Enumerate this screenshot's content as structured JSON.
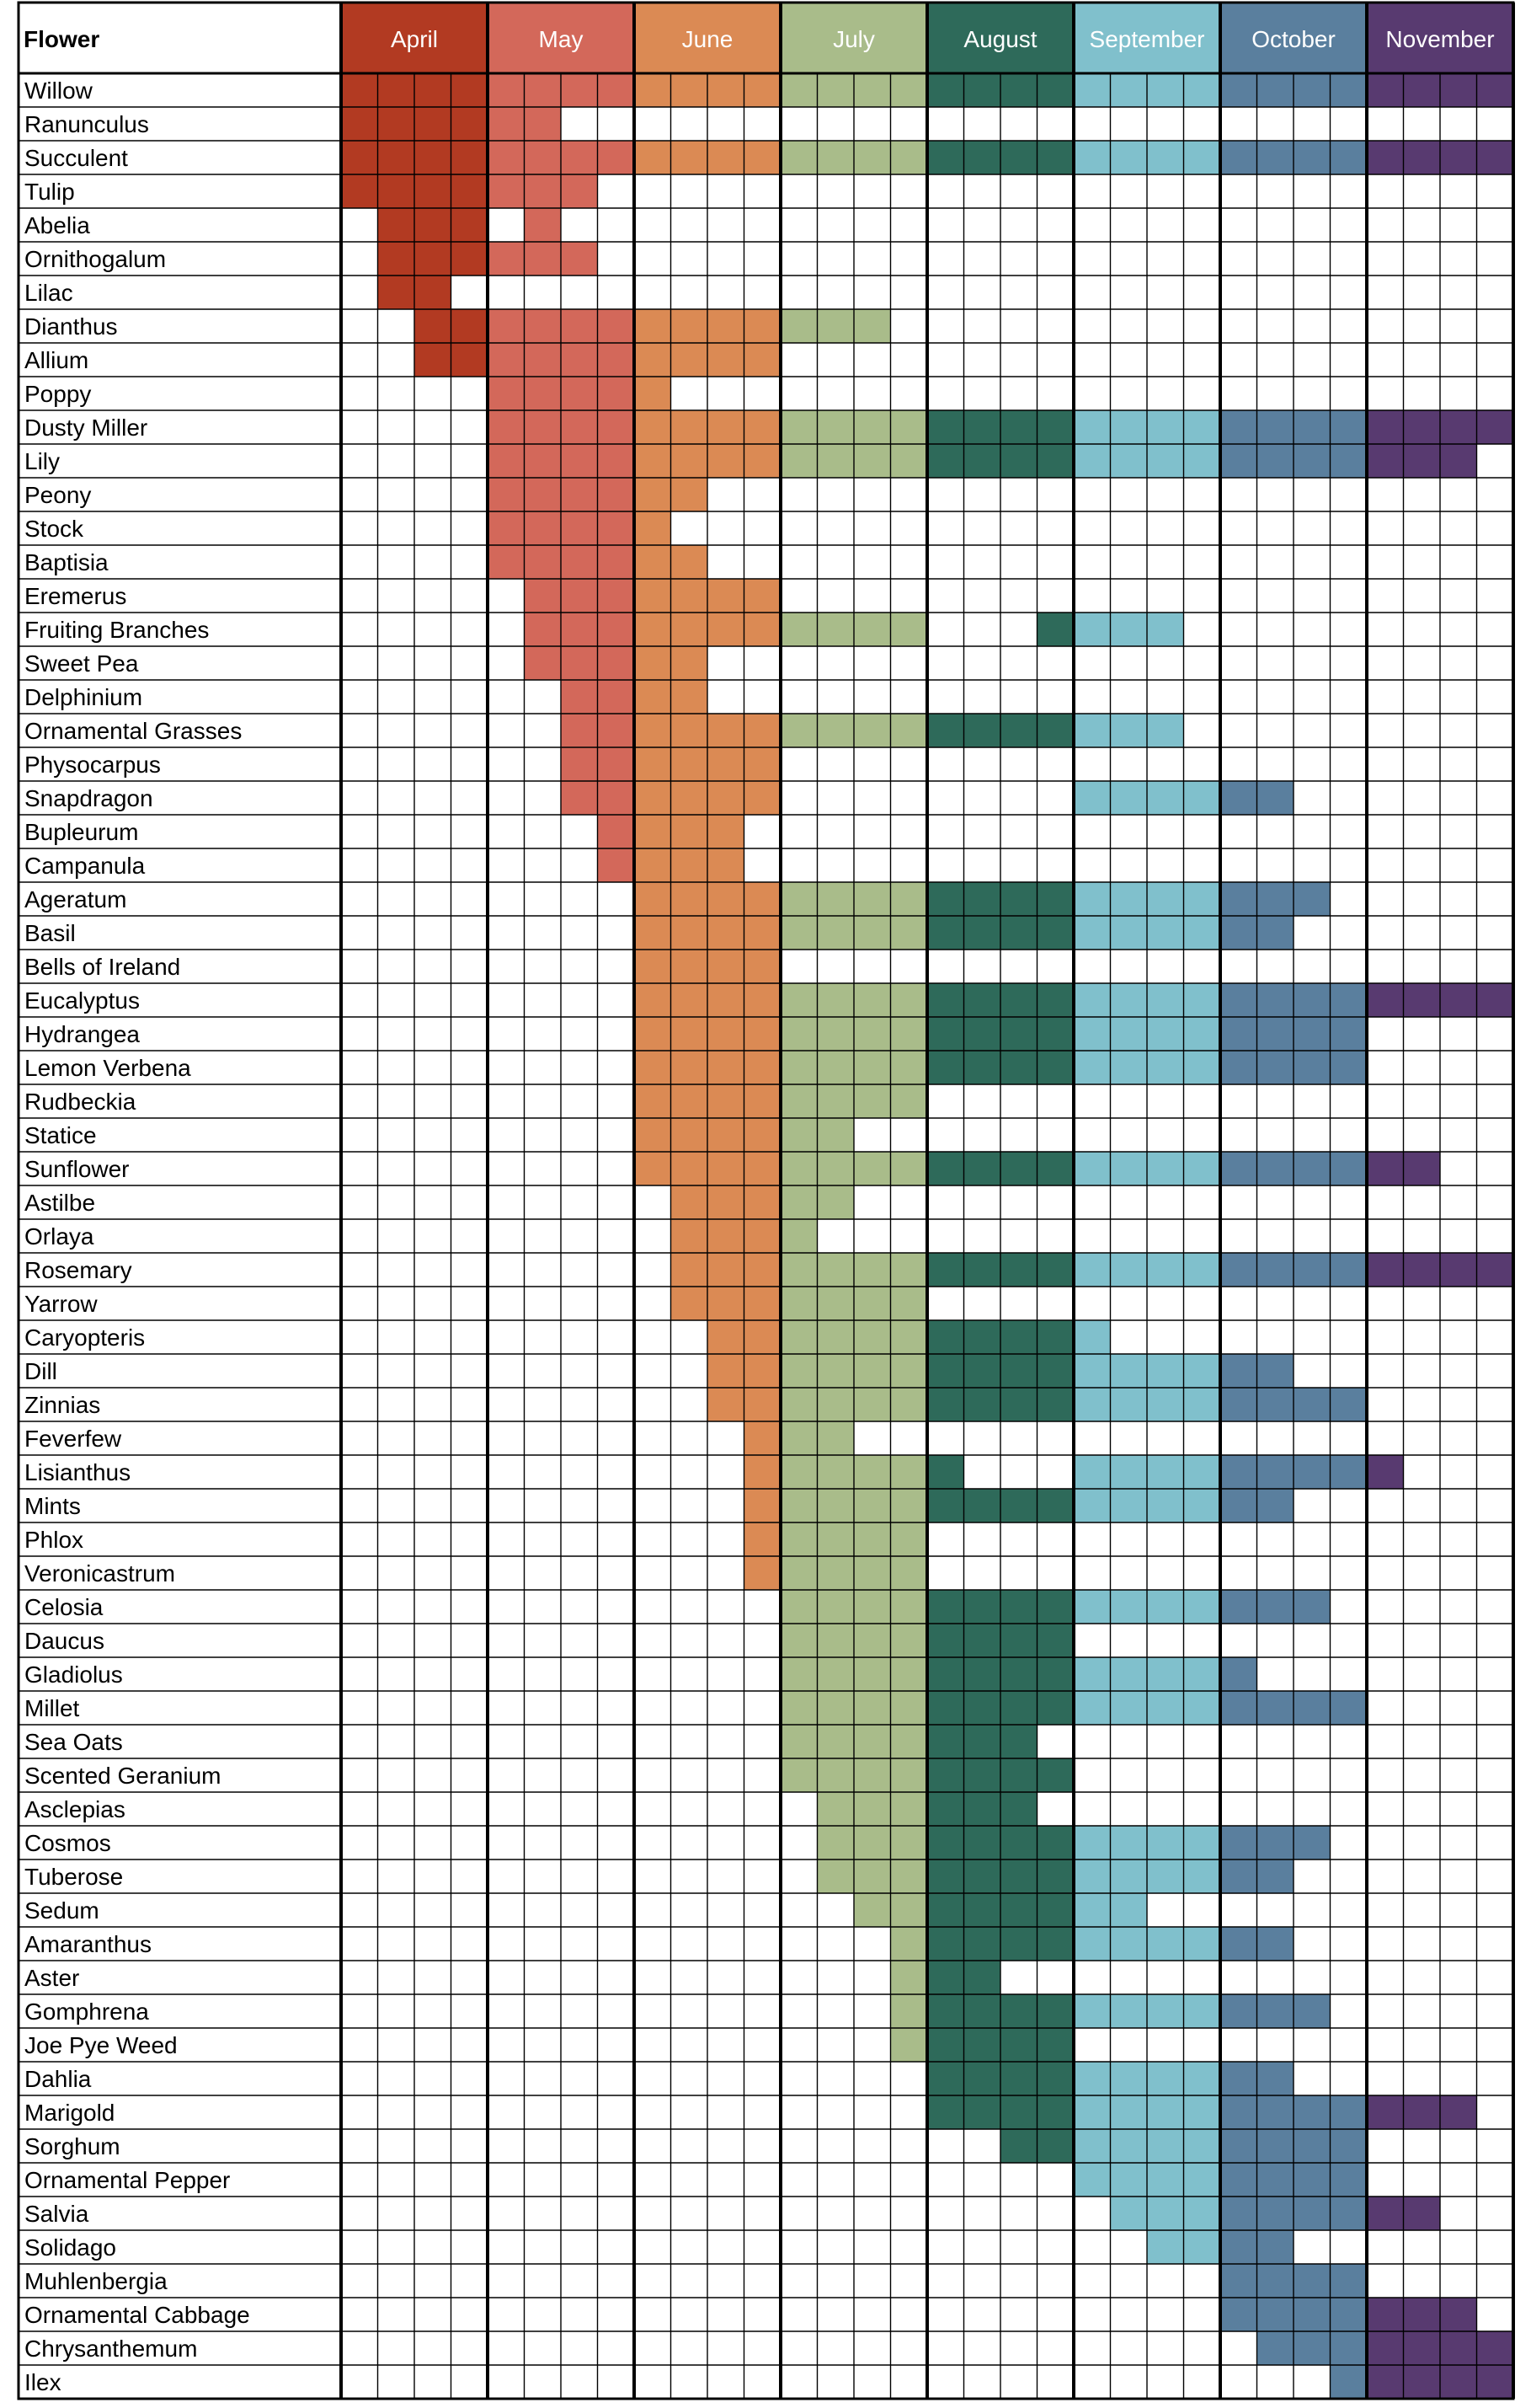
{
  "chart_data": {
    "type": "table",
    "title": "",
    "row_header": "Flower",
    "weeks_per_month": 4,
    "months": [
      {
        "name": "April",
        "color": "#B23A22"
      },
      {
        "name": "May",
        "color": "#D3685A"
      },
      {
        "name": "June",
        "color": "#DB8A54"
      },
      {
        "name": "July",
        "color": "#A9BC8A"
      },
      {
        "name": "August",
        "color": "#2E6A5A"
      },
      {
        "name": "September",
        "color": "#80C0CC"
      },
      {
        "name": "October",
        "color": "#5A7F9E"
      },
      {
        "name": "November",
        "color": "#583A70"
      }
    ],
    "rows": [
      {
        "flower": "Willow",
        "weeks": "11111111111111111111111111111111"
      },
      {
        "flower": "Ranunculus",
        "weeks": "11111100000000000000000000000000"
      },
      {
        "flower": "Succulent",
        "weeks": "11111111111111111111111111111111"
      },
      {
        "flower": "Tulip",
        "weeks": "11111110000000000000000000000000"
      },
      {
        "flower": "Abelia",
        "weeks": "01110100000000000000000000000000"
      },
      {
        "flower": "Ornithogalum",
        "weeks": "01111110000000000000000000000000"
      },
      {
        "flower": "Lilac",
        "weeks": "01100000000000000000000000000000"
      },
      {
        "flower": "Dianthus",
        "weeks": "00111111111111100000000000000000"
      },
      {
        "flower": "Allium",
        "weeks": "00111111111100000000000000000000"
      },
      {
        "flower": "Poppy",
        "weeks": "00001111100000000000000000000000"
      },
      {
        "flower": "Dusty Miller",
        "weeks": "00001111111111111111111111111111"
      },
      {
        "flower": "Lily",
        "weeks": "00001111111111111111111111111110"
      },
      {
        "flower": "Peony",
        "weeks": "00001111110000000000000000000000"
      },
      {
        "flower": "Stock",
        "weeks": "00001111100000000000000000000000"
      },
      {
        "flower": "Baptisia",
        "weeks": "00001111110000000000000000000000"
      },
      {
        "flower": "Eremerus",
        "weeks": "00000111111100000000000000000000"
      },
      {
        "flower": "Fruiting Branches",
        "weeks": "00000111111111110001111000000000"
      },
      {
        "flower": "Sweet Pea",
        "weeks": "00000111110000000000000000000000"
      },
      {
        "flower": "Delphinium",
        "weeks": "00000011110000000000000000000000"
      },
      {
        "flower": "Ornamental Grasses",
        "weeks": "00000011111111111111111000000000"
      },
      {
        "flower": "Physocarpus",
        "weeks": "00000011111100000000000000000000"
      },
      {
        "flower": "Snapdragon",
        "weeks": "00000011111100000000111111000000"
      },
      {
        "flower": "Bupleurum",
        "weeks": "00000001111000000000000000000000"
      },
      {
        "flower": "Campanula",
        "weeks": "00000001111000000000000000000000"
      },
      {
        "flower": "Ageratum",
        "weeks": "00000000111111111111111111100000"
      },
      {
        "flower": "Basil",
        "weeks": "00000000111111111111111111000000"
      },
      {
        "flower": "Bells of Ireland",
        "weeks": "00000000111100000000000000000000"
      },
      {
        "flower": "Eucalyptus",
        "weeks": "00000000111111111111111111111111"
      },
      {
        "flower": "Hydrangea",
        "weeks": "00000000111111111111111111110000"
      },
      {
        "flower": "Lemon Verbena",
        "weeks": "00000000111111111111111111110000"
      },
      {
        "flower": "Rudbeckia",
        "weeks": "00000000111111110000000000000000"
      },
      {
        "flower": "Statice",
        "weeks": "00000000111111000000000000000000"
      },
      {
        "flower": "Sunflower",
        "weeks": "00000000111111111111111111111100"
      },
      {
        "flower": "Astilbe",
        "weeks": "00000000011111000000000000000000"
      },
      {
        "flower": "Orlaya",
        "weeks": "00000000011110000000000000000000"
      },
      {
        "flower": "Rosemary",
        "weeks": "00000000011111111111111111111111"
      },
      {
        "flower": "Yarrow",
        "weeks": "00000000011111110000000000000000"
      },
      {
        "flower": "Caryopteris",
        "weeks": "00000000001111111111100000000000"
      },
      {
        "flower": "Dill",
        "weeks": "00000000001111111111111111000000"
      },
      {
        "flower": "Zinnias",
        "weeks": "00000000001111111111111111110000"
      },
      {
        "flower": "Feverfew",
        "weeks": "00000000000111000000000000000000"
      },
      {
        "flower": "Lisianthus",
        "weeks": "00000000000111111000111111111000"
      },
      {
        "flower": "Mints",
        "weeks": "00000000000111111111111111000000"
      },
      {
        "flower": "Phlox",
        "weeks": "00000000000111110000000000000000"
      },
      {
        "flower": "Veronicastrum",
        "weeks": "00000000000111110000000000000000"
      },
      {
        "flower": "Celosia",
        "weeks": "00000000000011111111111111100000"
      },
      {
        "flower": "Daucus",
        "weeks": "00000000000011111111000000000000"
      },
      {
        "flower": "Gladiolus",
        "weeks": "00000000000011111111111110000000"
      },
      {
        "flower": "Millet",
        "weeks": "00000000000011111111111111110000"
      },
      {
        "flower": "Sea Oats",
        "weeks": "00000000000011111110000000000000"
      },
      {
        "flower": "Scented Geranium",
        "weeks": "00000000000011111111000000000000"
      },
      {
        "flower": "Asclepias",
        "weeks": "00000000000001111110000000000000"
      },
      {
        "flower": "Cosmos",
        "weeks": "00000000000001111111111111100000"
      },
      {
        "flower": "Tuberose",
        "weeks": "00000000000001111111111111000000"
      },
      {
        "flower": "Sedum",
        "weeks": "00000000000000111111110000000000"
      },
      {
        "flower": "Amaranthus",
        "weeks": "00000000000000011111111111000000"
      },
      {
        "flower": "Aster",
        "weeks": "00000000000000011100000000000000"
      },
      {
        "flower": "Gomphrena",
        "weeks": "00000000000000011111111111100000"
      },
      {
        "flower": "Joe Pye Weed",
        "weeks": "00000000000000011111000000000000"
      },
      {
        "flower": "Dahlia",
        "weeks": "00000000000000001111111111000000"
      },
      {
        "flower": "Marigold",
        "weeks": "00000000000000001111111111111110"
      },
      {
        "flower": "Sorghum",
        "weeks": "00000000000000000011111111110000"
      },
      {
        "flower": "Ornamental Pepper",
        "weeks": "00000000000000000000111111110000"
      },
      {
        "flower": "Salvia",
        "weeks": "00000000000000000000011111111100"
      },
      {
        "flower": "Solidago",
        "weeks": "00000000000000000000001111000000"
      },
      {
        "flower": "Muhlenbergia",
        "weeks": "00000000000000000000000011110000"
      },
      {
        "flower": "Ornamental Cabbage",
        "weeks": "00000000000000000000000011111110"
      },
      {
        "flower": "Chrysanthemum",
        "weeks": "00000000000000000000000001111111"
      },
      {
        "flower": "Ilex",
        "weeks": "00000000000000000000000000011111"
      }
    ]
  }
}
